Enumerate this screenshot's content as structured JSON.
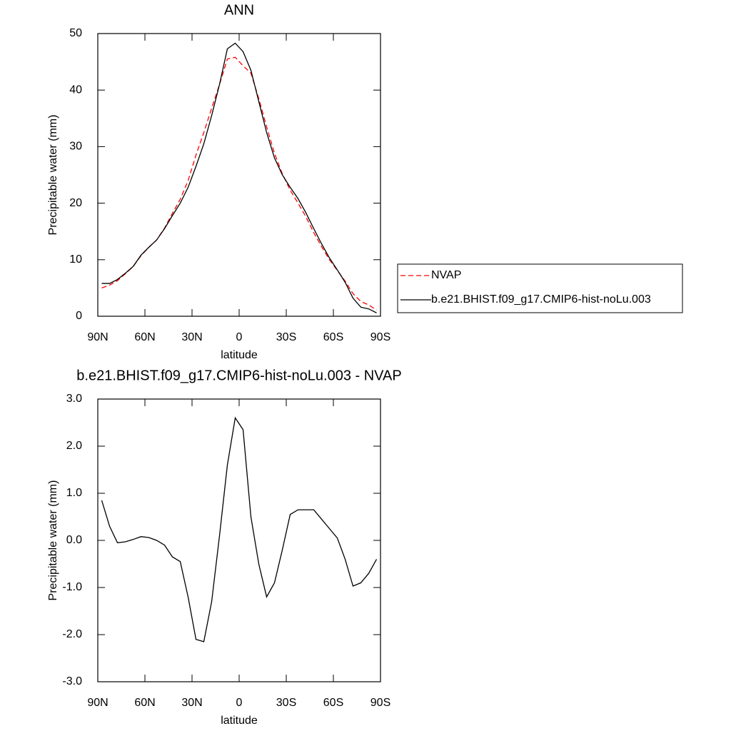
{
  "chart_data": [
    {
      "type": "line",
      "title": "ANN",
      "xlabel": "latitude",
      "ylabel": "Precipitable water (mm)",
      "x": [
        87.5,
        82.5,
        77.5,
        72.5,
        67.5,
        62.5,
        57.5,
        52.5,
        47.5,
        42.5,
        37.5,
        32.5,
        27.5,
        22.5,
        17.5,
        12.5,
        7.5,
        2.5,
        -2.5,
        -7.5,
        -12.5,
        -17.5,
        -22.5,
        -27.5,
        -32.5,
        -37.5,
        -42.5,
        -47.5,
        -52.5,
        -57.5,
        -62.5,
        -67.5,
        -72.5,
        -77.5,
        -82.5,
        -87.5
      ],
      "series": [
        {
          "name": "NVAP",
          "color": "#ff0000",
          "dashed": true,
          "values": [
            5.0,
            5.5,
            6.3,
            7.5,
            8.8,
            10.7,
            12.2,
            13.5,
            15.6,
            18.2,
            20.7,
            24,
            28.5,
            32.5,
            36.8,
            41,
            45.5,
            45.8,
            44.3,
            43,
            38.5,
            33.5,
            28.8,
            25.2,
            22.3,
            20,
            17.6,
            14.8,
            12.3,
            10,
            8.1,
            6.2,
            4,
            2.6,
            2,
            1.1
          ]
        },
        {
          "name": "b.e21.BHIST.f09_g17.CMIP6-hist-noLu.003",
          "color": "#000000",
          "dashed": false,
          "values": [
            5.8,
            5.8,
            6.5,
            7.6,
            8.8,
            10.8,
            12.2,
            13.5,
            15.5,
            17.8,
            20,
            22.8,
            26.5,
            30.5,
            35.5,
            41,
            47.3,
            48.3,
            46.8,
            43.5,
            38,
            32.5,
            28,
            25,
            22.8,
            20.8,
            18.3,
            15.5,
            12.8,
            10.3,
            8.2,
            6,
            3.2,
            1.6,
            1.3,
            0.6
          ]
        }
      ],
      "xlim": [
        90,
        -90
      ],
      "xticks": [
        {
          "value": 90,
          "label": "90N"
        },
        {
          "value": 60,
          "label": "60N"
        },
        {
          "value": 30,
          "label": "30N"
        },
        0,
        {
          "value": -30,
          "label": "30S"
        },
        {
          "value": -60,
          "label": "60S"
        },
        {
          "value": -90,
          "label": "90S"
        }
      ],
      "ylim": [
        0,
        50
      ],
      "yticks": [
        0,
        10,
        20,
        30,
        40,
        50
      ],
      "legend": "right"
    },
    {
      "type": "line",
      "title": "b.e21.BHIST.f09_g17.CMIP6-hist-noLu.003 - NVAP",
      "xlabel": "latitude",
      "ylabel": "Precipitable water (mm)",
      "x": [
        87.5,
        82.5,
        77.5,
        72.5,
        67.5,
        62.5,
        57.5,
        52.5,
        47.5,
        42.5,
        37.5,
        32.5,
        27.5,
        22.5,
        17.5,
        12.5,
        7.5,
        2.5,
        -2.5,
        -7.5,
        -12.5,
        -17.5,
        -22.5,
        -27.5,
        -32.5,
        -37.5,
        -42.5,
        -47.5,
        -52.5,
        -57.5,
        -62.5,
        -67.5,
        -72.5,
        -77.5,
        -82.5,
        -87.5
      ],
      "series": [
        {
          "color": "#000000",
          "dashed": false,
          "values": [
            0.85,
            0.3,
            -0.05,
            -0.03,
            0.02,
            0.08,
            0.06,
            0.0,
            -0.1,
            -0.35,
            -0.45,
            -1.2,
            -2.1,
            -2.15,
            -1.3,
            0.1,
            1.6,
            2.6,
            2.35,
            0.5,
            -0.5,
            -1.2,
            -0.9,
            -0.2,
            0.55,
            0.65,
            0.65,
            0.65,
            0.45,
            0.25,
            0.05,
            -0.4,
            -0.97,
            -0.9,
            -0.7,
            -0.4
          ]
        }
      ],
      "xlim": [
        90,
        -90
      ],
      "xticks": [
        {
          "value": 90,
          "label": "90N"
        },
        {
          "value": 60,
          "label": "60N"
        },
        {
          "value": 30,
          "label": "30N"
        },
        0,
        {
          "value": -30,
          "label": "30S"
        },
        {
          "value": -60,
          "label": "60S"
        },
        {
          "value": -90,
          "label": "90S"
        }
      ],
      "ylim": [
        -3,
        3
      ],
      "yticks": [
        {
          "value": -3,
          "label": "-3.0"
        },
        {
          "value": -2,
          "label": "-2.0"
        },
        {
          "value": -1,
          "label": "-1.0"
        },
        {
          "value": 0,
          "label": "0.0"
        },
        {
          "value": 1,
          "label": "1.0"
        },
        {
          "value": 2,
          "label": "2.0"
        },
        {
          "value": 3,
          "label": "3.0"
        }
      ]
    }
  ]
}
